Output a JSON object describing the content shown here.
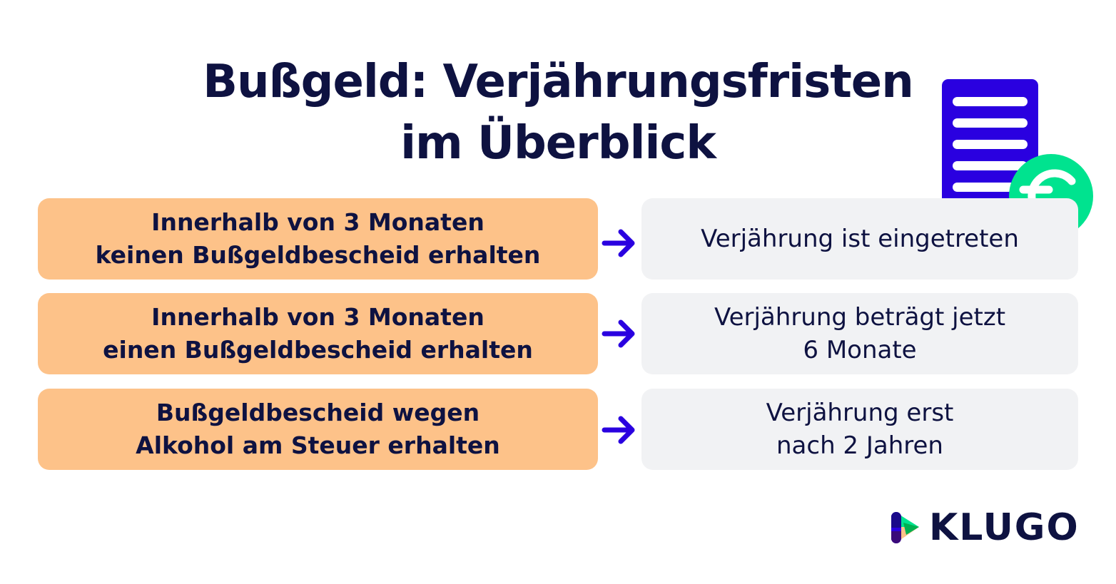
{
  "title": {
    "line1": "Bußgeld: Verjährungsfristen",
    "line2": "im Überblick"
  },
  "rows": [
    {
      "condition": [
        "Innerhalb von 3 Monaten",
        "keinen Bußgeldbescheid erhalten"
      ],
      "result": [
        "Verjährung ist eingetreten"
      ]
    },
    {
      "condition": [
        "Innerhalb von 3 Monaten",
        "einen Bußgeldbescheid erhalten"
      ],
      "result": [
        "Verjährung beträgt jetzt",
        "6 Monate"
      ]
    },
    {
      "condition": [
        "Bußgeldbescheid wegen",
        "Alkohol am Steuer erhalten"
      ],
      "result": [
        "Verjährung erst",
        "nach 2 Jahren"
      ]
    }
  ],
  "icons": {
    "arrow": "arrow-right-icon",
    "document": "document-icon",
    "coin": "euro-coin-icon"
  },
  "logo": {
    "text": "KLUGO"
  },
  "colors": {
    "text": "#0e1241",
    "condition_bg": "#fdc289",
    "result_bg": "#f1f2f4",
    "accent_blue": "#2a00e0",
    "accent_green": "#00e38f"
  }
}
